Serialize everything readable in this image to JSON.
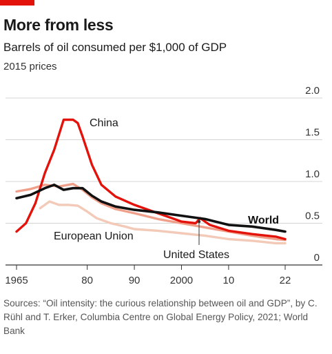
{
  "header": {
    "title": "More from less",
    "subtitle": "Barrels of oil consumed per $1,000 of GDP",
    "units": "2015 prices"
  },
  "colors": {
    "accent": "#e3120b",
    "world": "#111111",
    "china": "#e3120b",
    "eu": "#f0a08a",
    "us": "#f3c9b8"
  },
  "chart_data": {
    "type": "line",
    "title": "More from less",
    "subtitle": "Barrels of oil consumed per $1,000 of GDP",
    "ylabel": "2015 prices",
    "xlim": [
      1965,
      2022
    ],
    "ylim": [
      0,
      2.0
    ],
    "y_ticks": [
      0,
      0.5,
      1.0,
      1.5,
      2.0
    ],
    "y_tick_labels": [
      "0",
      "0.5",
      "1.0",
      "1.5",
      "2.0"
    ],
    "x_ticks": [
      1965,
      1980,
      1990,
      2000,
      2010,
      2022
    ],
    "x_tick_labels": [
      "1965",
      "80",
      "90",
      "2000",
      "10",
      "22"
    ],
    "grid": true,
    "y_axis_side": "right",
    "series": [
      {
        "name": "United States",
        "color": "#f3c9b8",
        "x": [
          1970,
          1972,
          1974,
          1976,
          1978,
          1980,
          1982,
          1985,
          1988,
          1990,
          1995,
          2000,
          2005,
          2010,
          2015,
          2020,
          2022
        ],
        "values": [
          0.68,
          0.76,
          0.72,
          0.72,
          0.71,
          0.64,
          0.56,
          0.5,
          0.46,
          0.43,
          0.41,
          0.38,
          0.35,
          0.31,
          0.29,
          0.26,
          0.26
        ]
      },
      {
        "name": "European Union",
        "color": "#f0a08a",
        "x": [
          1965,
          1968,
          1971,
          1974,
          1977,
          1979,
          1981,
          1983,
          1986,
          1990,
          1995,
          2000,
          2005,
          2010,
          2015,
          2020,
          2022
        ],
        "values": [
          0.88,
          0.91,
          0.96,
          0.94,
          0.97,
          0.9,
          0.81,
          0.74,
          0.67,
          0.62,
          0.55,
          0.5,
          0.45,
          0.4,
          0.35,
          0.31,
          0.3
        ]
      },
      {
        "name": "China",
        "color": "#e3120b",
        "x": [
          1965,
          1967,
          1969,
          1971,
          1973,
          1975,
          1977,
          1978,
          1979,
          1981,
          1983,
          1986,
          1990,
          1995,
          2000,
          2003,
          2004,
          2005,
          2006,
          2010,
          2015,
          2020,
          2022
        ],
        "values": [
          0.4,
          0.5,
          0.74,
          1.1,
          1.38,
          1.74,
          1.74,
          1.7,
          1.54,
          1.2,
          0.96,
          0.82,
          0.72,
          0.62,
          0.52,
          0.5,
          0.56,
          0.52,
          0.48,
          0.41,
          0.37,
          0.34,
          0.31
        ]
      },
      {
        "name": "World",
        "color": "#111111",
        "x": [
          1965,
          1968,
          1971,
          1973,
          1975,
          1977,
          1979,
          1981,
          1983,
          1986,
          1990,
          1995,
          2000,
          2005,
          2010,
          2015,
          2020,
          2022
        ],
        "values": [
          0.8,
          0.84,
          0.92,
          0.96,
          0.9,
          0.92,
          0.92,
          0.83,
          0.76,
          0.7,
          0.66,
          0.63,
          0.59,
          0.55,
          0.48,
          0.46,
          0.42,
          0.4
        ]
      }
    ],
    "annotations": [
      "China",
      "World",
      "European Union",
      "United States"
    ]
  },
  "source_text": "Sources: “Oil intensity: the curious relationship between oil and GDP”, by C. Rühl and T. Erker, Columbia Centre on Global Energy Policy, 2021; World Bank"
}
